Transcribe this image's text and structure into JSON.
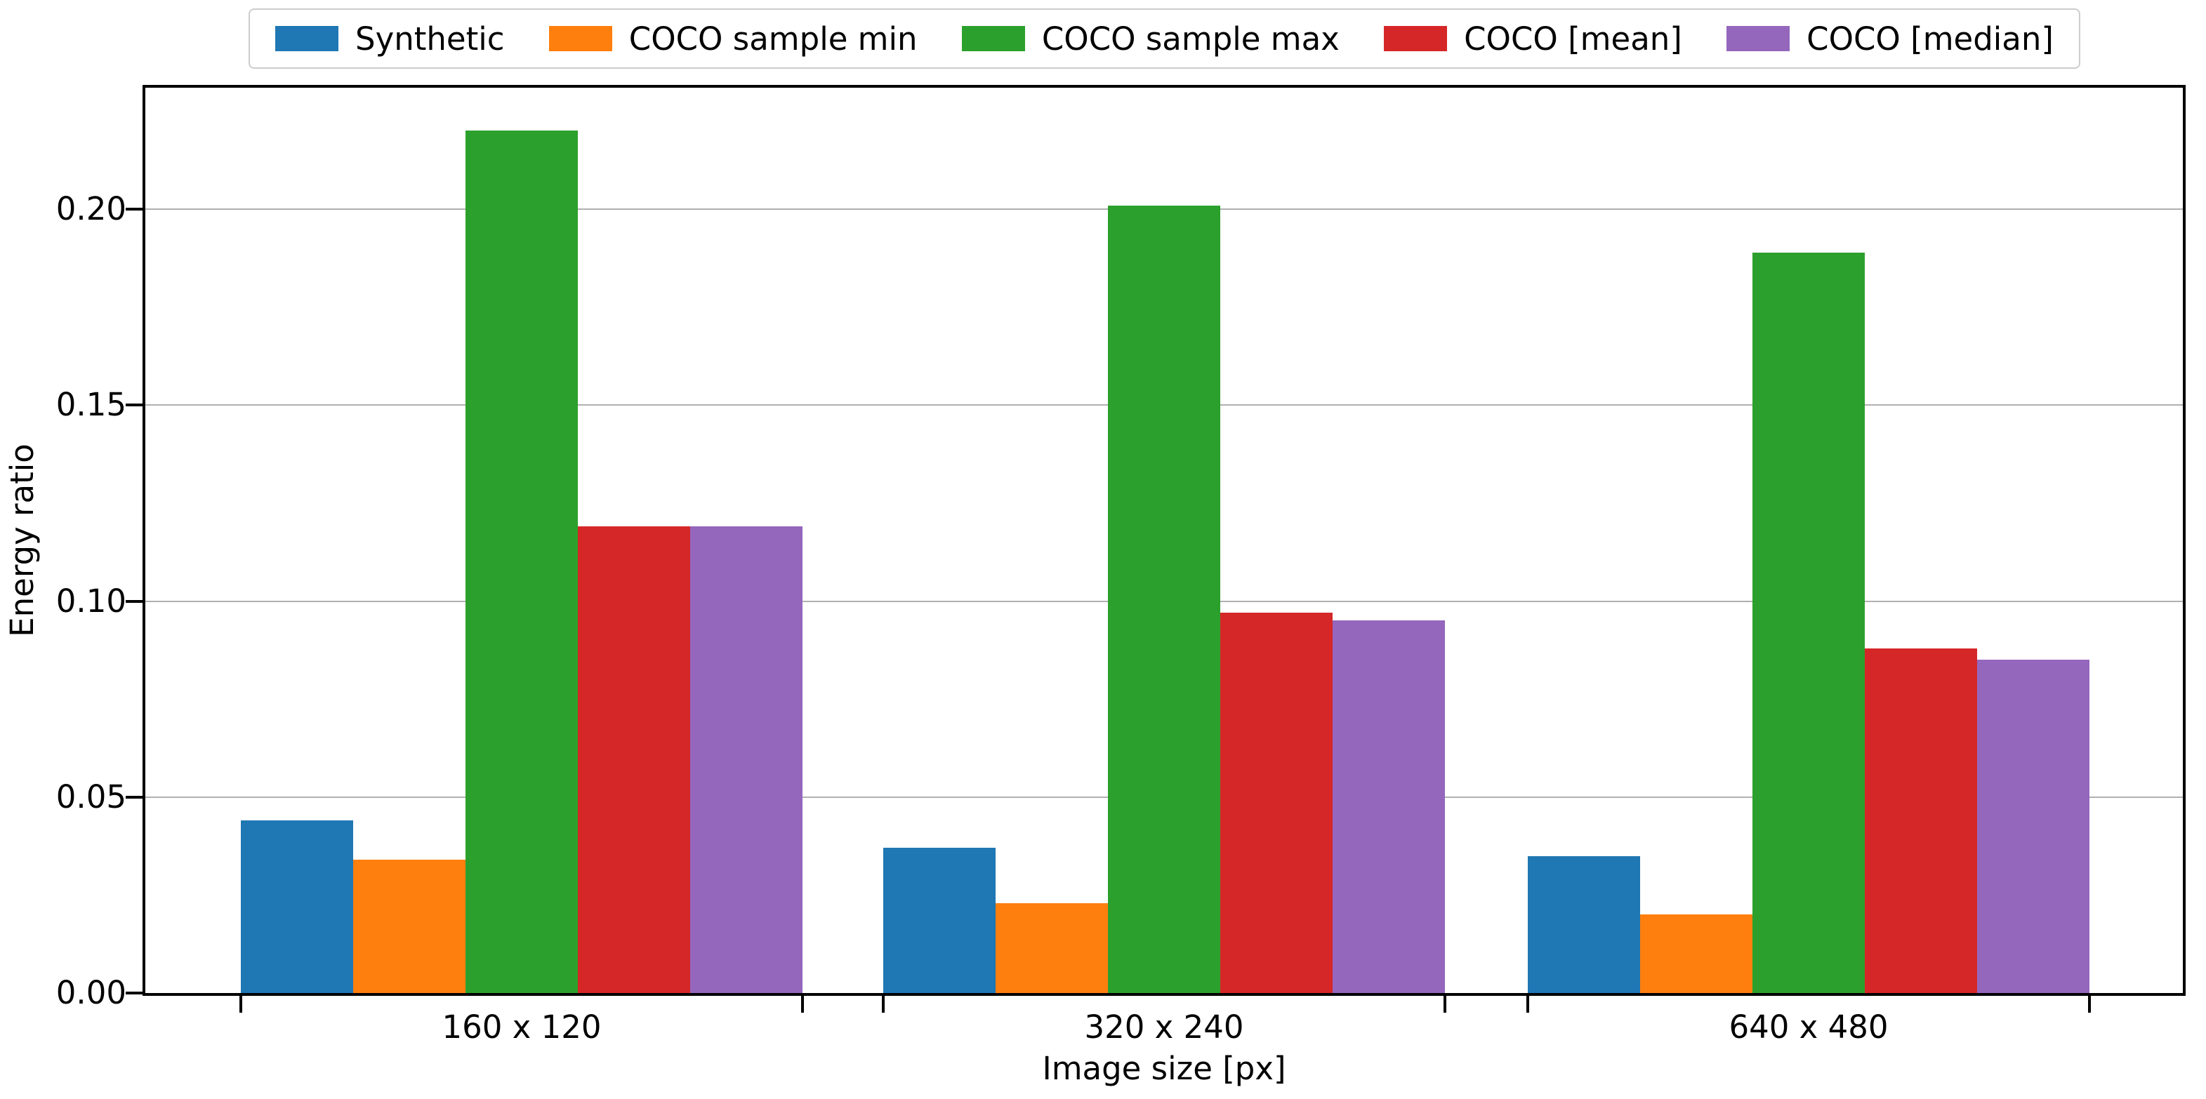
{
  "chart_data": {
    "type": "bar",
    "title": "",
    "categories": [
      "160 x 120",
      "320 x 240",
      "640 x 480"
    ],
    "series": [
      {
        "name": "Synthetic",
        "color": "#1f77b4",
        "values": [
          0.044,
          0.037,
          0.035
        ]
      },
      {
        "name": "COCO sample min",
        "color": "#ff7f0e",
        "values": [
          0.034,
          0.023,
          0.02
        ]
      },
      {
        "name": "COCO sample max",
        "color": "#2ca02c",
        "values": [
          0.22,
          0.201,
          0.189
        ]
      },
      {
        "name": "COCO [mean]",
        "color": "#d62728",
        "values": [
          0.119,
          0.097,
          0.088
        ]
      },
      {
        "name": "COCO [median]",
        "color": "#9467bd",
        "values": [
          0.119,
          0.095,
          0.085
        ]
      }
    ],
    "xlabel": "Image size [px]",
    "ylabel": "Energy ratio",
    "ylim": [
      0,
      0.231
    ],
    "yticks": [
      0.0,
      0.05,
      0.1,
      0.15,
      0.2
    ],
    "ytick_labels": [
      "0.00",
      "0.05",
      "0.10",
      "0.15",
      "0.20"
    ],
    "grid": "horizontal",
    "legend_position": "top",
    "axis_colors": {
      "spine": "#000000",
      "grid": "#b0b0b0",
      "legend_border": "#cccccc"
    }
  }
}
